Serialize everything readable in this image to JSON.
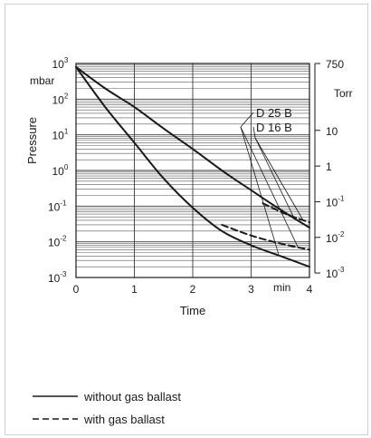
{
  "chart_data": {
    "type": "line",
    "xlabel": "Time",
    "x_unit": "min",
    "ylabel": "Pressure",
    "y_unit": "mbar",
    "y2_unit": "Torr",
    "xlim": [
      0,
      4
    ],
    "ylim": [
      0.001,
      1000
    ],
    "y_scale": "log",
    "x_ticks": [
      "0",
      "1",
      "2",
      "3",
      "4"
    ],
    "y_ticks": [
      {
        "base": "10",
        "exp": "3",
        "value": 1000
      },
      {
        "base": "10",
        "exp": "2",
        "value": 100
      },
      {
        "base": "10",
        "exp": "1",
        "value": 10
      },
      {
        "base": "10",
        "exp": "0",
        "value": 1
      },
      {
        "base": "10",
        "exp": "-1",
        "value": 0.1
      },
      {
        "base": "10",
        "exp": "-2",
        "value": 0.01
      },
      {
        "base": "10",
        "exp": "-3",
        "value": 0.001
      }
    ],
    "y2_ticks": [
      {
        "base": "750",
        "exp": "",
        "value": 1000
      },
      {
        "base": "10",
        "exp": "",
        "value": 13.33
      },
      {
        "base": "1",
        "exp": "",
        "value": 1.333
      },
      {
        "base": "10",
        "exp": "-1",
        "value": 0.1333
      },
      {
        "base": "10",
        "exp": "-2",
        "value": 0.01333
      },
      {
        "base": "10",
        "exp": "-3",
        "value": 0.001333
      }
    ],
    "grid": true,
    "series": [
      {
        "name": "D 25 B",
        "style": "solid",
        "x": [
          0,
          0.5,
          1,
          1.5,
          2,
          2.5,
          3,
          3.5,
          4
        ],
        "y": [
          800,
          60,
          6,
          0.6,
          0.09,
          0.02,
          0.008,
          0.004,
          0.002
        ]
      },
      {
        "name": "D 25 B",
        "style": "dashed",
        "x": [
          2.5,
          3,
          3.5,
          4
        ],
        "y": [
          0.03,
          0.015,
          0.009,
          0.006
        ]
      },
      {
        "name": "D 16 B",
        "style": "solid",
        "x": [
          0,
          0.5,
          1,
          1.5,
          2,
          2.5,
          3,
          3.5,
          4
        ],
        "y": [
          800,
          200,
          60,
          15,
          4,
          1,
          0.28,
          0.08,
          0.025
        ]
      },
      {
        "name": "D 16 B",
        "style": "dashed",
        "x": [
          3.2,
          3.6,
          4
        ],
        "y": [
          0.12,
          0.06,
          0.035
        ]
      }
    ],
    "legend": [
      {
        "style": "solid",
        "label": "without gas ballast"
      },
      {
        "style": "dashed",
        "label": "with gas ballast"
      }
    ]
  }
}
